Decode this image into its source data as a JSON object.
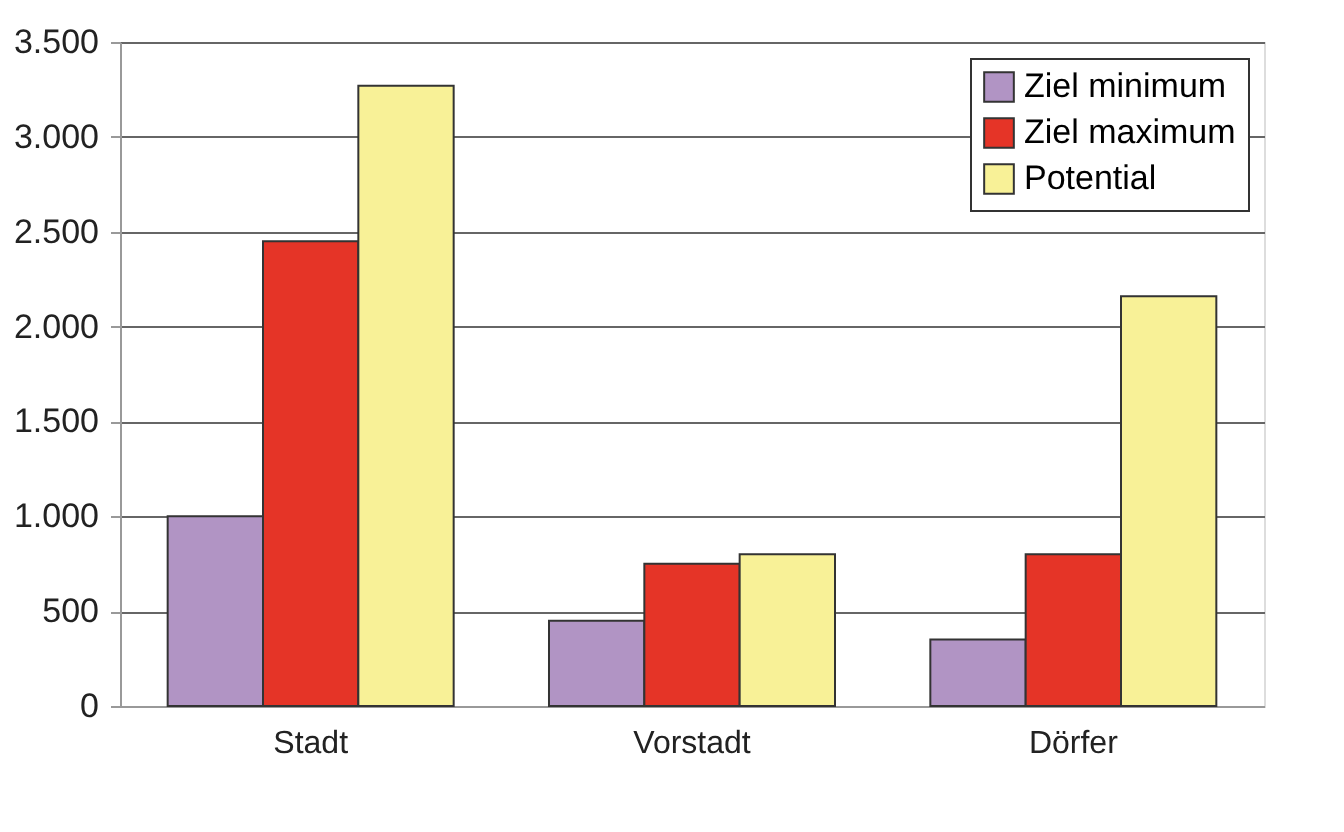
{
  "chart_data": {
    "type": "bar",
    "categories": [
      "Stadt",
      "Vorstadt",
      "Dörfer"
    ],
    "series": [
      {
        "name": "Ziel minimum",
        "color": "#b194c4",
        "values": [
          1000,
          450,
          350
        ]
      },
      {
        "name": "Ziel maximum",
        "color": "#e53427",
        "values": [
          2450,
          750,
          800
        ]
      },
      {
        "name": "Potential",
        "color": "#f8f197",
        "values": [
          3270,
          800,
          2160
        ]
      }
    ],
    "ylim": [
      0,
      3500
    ],
    "yticks": [
      {
        "value": 0,
        "label": "0"
      },
      {
        "value": 500,
        "label": "500"
      },
      {
        "value": 1000,
        "label": "1.000"
      },
      {
        "value": 1500,
        "label": "1.500"
      },
      {
        "value": 2000,
        "label": "2.000"
      },
      {
        "value": 2500,
        "label": "2.500"
      },
      {
        "value": 3000,
        "label": "3.000"
      },
      {
        "value": 3500,
        "label": "3.500"
      }
    ],
    "grid": "y",
    "legend": "top right"
  }
}
